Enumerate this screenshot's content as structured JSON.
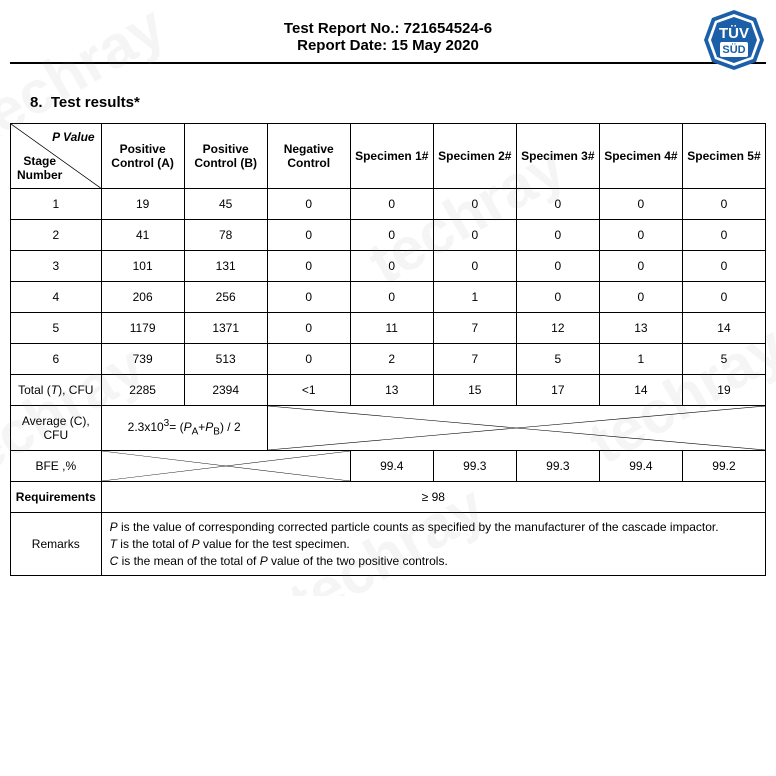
{
  "header": {
    "report_no_label": "Test Report No.: ",
    "report_no": "721654524-6",
    "report_date_label": "Report Date: ",
    "report_date": "15 May 2020"
  },
  "logo": {
    "top_text": "TÜV",
    "bottom_text": "SÜD",
    "fill": "#1b5fa8",
    "inner": "#ffffff"
  },
  "section": {
    "number": "8.",
    "title": "Test results*"
  },
  "table": {
    "diag_top": "P Value",
    "diag_bottom": "Stage\nNumber",
    "columns": [
      "Positive Control (A)",
      "Positive Control (B)",
      "Negative Control",
      "Specimen 1#",
      "Specimen 2#",
      "Specimen 3#",
      "Specimen 4#",
      "Specimen 5#"
    ],
    "rows": [
      {
        "stage": "1",
        "cells": [
          "19",
          "45",
          "0",
          "0",
          "0",
          "0",
          "0",
          "0"
        ]
      },
      {
        "stage": "2",
        "cells": [
          "41",
          "78",
          "0",
          "0",
          "0",
          "0",
          "0",
          "0"
        ]
      },
      {
        "stage": "3",
        "cells": [
          "101",
          "131",
          "0",
          "0",
          "0",
          "0",
          "0",
          "0"
        ]
      },
      {
        "stage": "4",
        "cells": [
          "206",
          "256",
          "0",
          "0",
          "1",
          "0",
          "0",
          "0"
        ]
      },
      {
        "stage": "5",
        "cells": [
          "1179",
          "1371",
          "0",
          "11",
          "7",
          "12",
          "13",
          "14"
        ]
      },
      {
        "stage": "6",
        "cells": [
          "739",
          "513",
          "0",
          "2",
          "7",
          "5",
          "1",
          "5"
        ]
      }
    ],
    "total_label": "Total (T), CFU",
    "total": [
      "2285",
      "2394",
      "<1",
      "13",
      "15",
      "17",
      "14",
      "19"
    ],
    "avg_label": "Average (C), CFU",
    "avg_formula": "2.3x10³= (Pₐ+Pᵦ) / 2",
    "bfe_label": "BFE ,%",
    "bfe": [
      "",
      "",
      "",
      "99.4",
      "99.3",
      "99.3",
      "99.4",
      "99.2"
    ],
    "req_label": "Requirements",
    "req_value": "≥ 98",
    "remarks_label": "Remarks",
    "remarks_p": "P is the value of corresponding corrected particle counts as specified by the manufacturer of the cascade impactor.",
    "remarks_t": "T is the total of P value for the test specimen.",
    "remarks_c": "C is the mean of the total of P value of the two positive controls."
  }
}
